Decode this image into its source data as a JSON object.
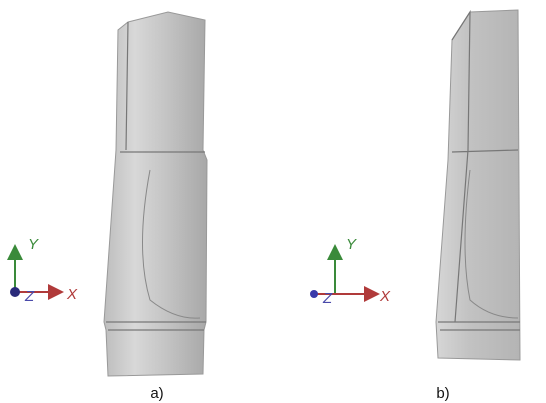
{
  "panels": [
    {
      "label": "a)",
      "axes": {
        "y": "Y",
        "z": "Z",
        "x": "X"
      }
    },
    {
      "label": "b)",
      "axes": {
        "y": "Y",
        "z": "Z",
        "x": "X"
      }
    }
  ]
}
